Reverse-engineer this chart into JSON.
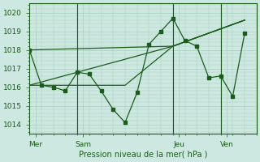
{
  "background_color": "#cde8e0",
  "plot_bg_color": "#cde8e0",
  "line_color": "#1a5c1a",
  "grid_color": "#a8cfc0",
  "ylabel_values": [
    1014,
    1015,
    1016,
    1017,
    1018,
    1019,
    1020
  ],
  "xlabel": "Pression niveau de la mer( hPa )",
  "ylim": [
    1013.5,
    1020.5
  ],
  "xlim": [
    0,
    19
  ],
  "day_lines": [
    4,
    12,
    16
  ],
  "x_tick_positions": [
    0.5,
    4.5,
    12.5,
    16.5
  ],
  "x_tick_labels": [
    "Mer",
    "Sam",
    "Jeu",
    "Ven"
  ],
  "series1": {
    "x": [
      0,
      1,
      2,
      3,
      4,
      5,
      6,
      7,
      8,
      9,
      10,
      11,
      12,
      13,
      14,
      15,
      16,
      17,
      18
    ],
    "y": [
      1018.0,
      1016.1,
      1016.0,
      1015.8,
      1016.8,
      1016.7,
      1015.8,
      1014.8,
      1014.1,
      1015.7,
      1018.3,
      1019.0,
      1019.7,
      1018.5,
      1018.2,
      1016.5,
      1016.6,
      1015.5,
      1018.9
    ]
  },
  "series2_x": [
    0,
    12,
    18
  ],
  "series2_y": [
    1016.1,
    1018.2,
    1019.6
  ],
  "series3_x": [
    0,
    12,
    18
  ],
  "series3_y": [
    1018.0,
    1018.2,
    1019.6
  ],
  "series4_x": [
    0,
    8,
    12,
    18
  ],
  "series4_y": [
    1016.1,
    1016.1,
    1018.2,
    1019.6
  ]
}
